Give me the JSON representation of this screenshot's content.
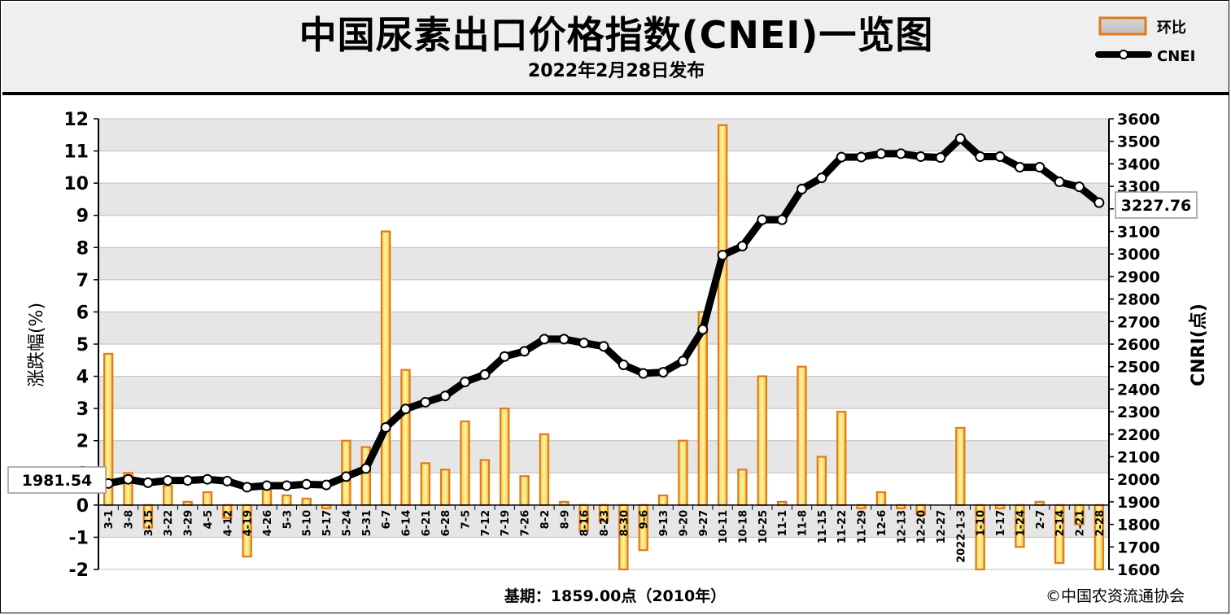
{
  "title": "中国尿素出口价格指数(CNEI)一览图",
  "subtitle": "2022年2月28日发布",
  "legend": [
    {
      "label": "环比",
      "type": "bar"
    },
    {
      "label": "CNEI",
      "type": "line"
    }
  ],
  "footer_base": "基期：1859.00点（2010年）",
  "footer_credit": "©中国农资流通协会",
  "colors": {
    "bar_fill": "#f2c230",
    "bar_edge": "#e07a1a",
    "line": "#000000",
    "grid_band": "#e6e6e6"
  },
  "chart_data": {
    "type": "bar+line",
    "ylabel_left": "涨跌幅(%)",
    "ylabel_right": "CNRI(点)",
    "ylim_left": [
      -2,
      12
    ],
    "ylim_right": [
      1600,
      3600
    ],
    "yticks_left": [
      "-2",
      "-1",
      "0",
      "1",
      "2",
      "3",
      "4",
      "5",
      "6",
      "7",
      "8",
      "9",
      "10",
      "11",
      "12"
    ],
    "yticks_right": [
      "1600",
      "1700",
      "1800",
      "1900",
      "2000",
      "2100",
      "2200",
      "2300",
      "2400",
      "2500",
      "2600",
      "2700",
      "2800",
      "2900",
      "3000",
      "3100",
      "3200",
      "3300",
      "3400",
      "3500",
      "3600"
    ],
    "categories": [
      "3-1",
      "3-8",
      "3-15",
      "3-22",
      "3-29",
      "4-5",
      "4-12",
      "4-19",
      "4-26",
      "5-3",
      "5-10",
      "5-17",
      "5-24",
      "5-31",
      "6-7",
      "6-14",
      "6-21",
      "6-28",
      "7-5",
      "7-12",
      "7-19",
      "7-26",
      "8-2",
      "8-9",
      "8-16",
      "8-23",
      "8-30",
      "9-6",
      "9-13",
      "9-20",
      "9-27",
      "10-11",
      "10-18",
      "10-25",
      "11-1",
      "11-8",
      "11-15",
      "11-22",
      "11-29",
      "12-6",
      "12-13",
      "12-20",
      "12-27",
      "2022-1-3",
      "1-10",
      "1-17",
      "1-24",
      "2-7",
      "2-14",
      "2-21",
      "2-28"
    ],
    "series": [
      {
        "name": "环比",
        "type": "bar",
        "values": [
          4.7,
          1.0,
          -0.7,
          0.6,
          0.1,
          0.4,
          -0.4,
          -1.6,
          0.5,
          0.3,
          0.2,
          -0.1,
          2.0,
          1.8,
          8.5,
          4.2,
          1.3,
          1.1,
          2.6,
          1.4,
          3.0,
          0.9,
          2.2,
          0.1,
          -0.8,
          -0.5,
          -2.0,
          -1.4,
          0.3,
          2.0,
          6.0,
          11.8,
          1.1,
          4.0,
          0.1,
          4.3,
          1.5,
          2.9,
          -0.1,
          0.4,
          -0.1,
          -0.3,
          0.0,
          2.4,
          -2.0,
          -0.1,
          -1.3,
          0.1,
          -1.8,
          -0.6,
          -2.0
        ]
      },
      {
        "name": "CNEI",
        "type": "line",
        "values": [
          1981.54,
          2000,
          1985,
          1995,
          1995,
          2000,
          1992,
          1965,
          1972,
          1972,
          1978,
          1975,
          2012,
          2048,
          2230,
          2312,
          2342,
          2370,
          2432,
          2465,
          2545,
          2568,
          2622,
          2622,
          2605,
          2590,
          2508,
          2470,
          2475,
          2525,
          2665,
          2995,
          3035,
          3152,
          3152,
          3288,
          3338,
          3430,
          3430,
          3445,
          3445,
          3432,
          3428,
          3512,
          3432,
          3432,
          3385,
          3385,
          3320,
          3298,
          3227.76
        ]
      }
    ],
    "data_labels": {
      "first": "1981.54",
      "last": "3227.76"
    },
    "grid": true
  }
}
